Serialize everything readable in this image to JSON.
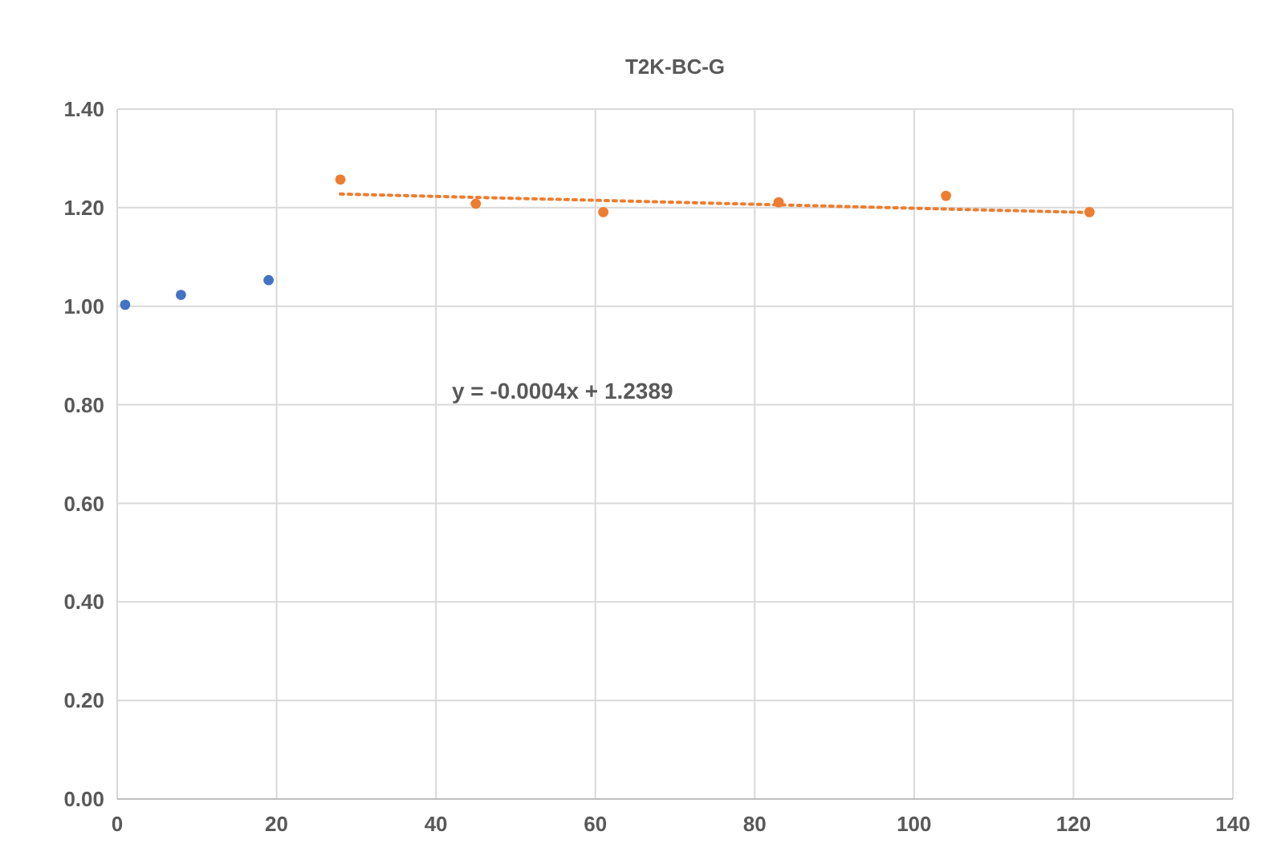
{
  "chart_data": {
    "type": "scatter",
    "title": "T2K-BC-G",
    "series": [
      {
        "color": "#4472c4",
        "x": [
          1,
          8,
          19
        ],
        "values": [
          1.003,
          1.023,
          1.053
        ]
      },
      {
        "color": "#ed7d31",
        "x": [
          28,
          45,
          61,
          83,
          104,
          122
        ],
        "values": [
          1.257,
          1.208,
          1.191,
          1.211,
          1.224,
          1.191
        ]
      },
      {
        "type": "line",
        "color": "#ed7d31",
        "line_style": "dotted",
        "marker": "none",
        "x": [
          28,
          122
        ],
        "values": [
          1.2277,
          1.1901
        ]
      }
    ],
    "xlim": [
      0,
      140
    ],
    "xticks": [
      0,
      20,
      40,
      60,
      80,
      100,
      120,
      140
    ],
    "ylim": [
      0,
      1.4
    ],
    "yticks": [
      {
        "value": 0,
        "label": "0.00"
      },
      {
        "value": 0.2,
        "label": "0.20"
      },
      {
        "value": 0.4,
        "label": "0.40"
      },
      {
        "value": 0.6,
        "label": "0.60"
      },
      {
        "value": 0.8,
        "label": "0.80"
      },
      {
        "value": 1.0,
        "label": "1.00"
      },
      {
        "value": 1.2,
        "label": "1.20"
      },
      {
        "value": 1.4,
        "label": "1.40"
      }
    ],
    "grid": true,
    "marker": "circle",
    "annotations": [
      "y = -0.0004x + 1.2389"
    ]
  }
}
